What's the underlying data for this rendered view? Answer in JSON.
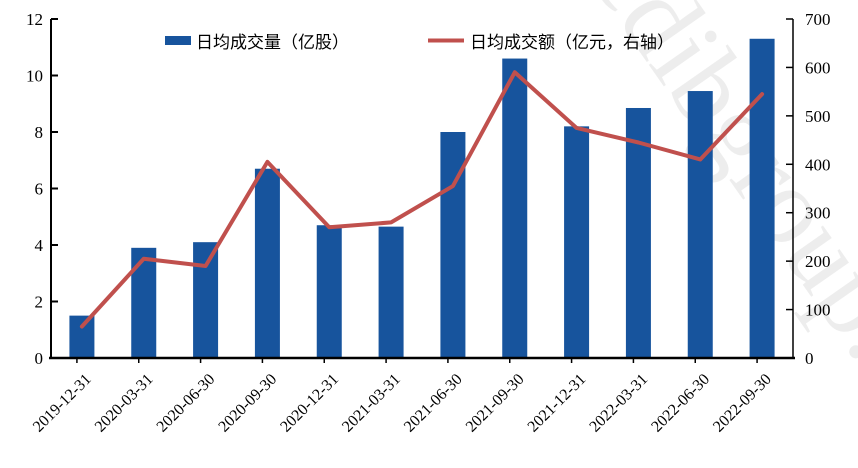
{
  "watermark": "edibgroup.cn",
  "colors": {
    "bar": "#17549d",
    "line": "#c0504d",
    "axis": "#000000",
    "text": "#000000",
    "watermark": "#d9d9d9",
    "background": "#ffffff"
  },
  "chart_data": {
    "type": "bar",
    "subtype": "combo-bar-line-dual-axis",
    "title": "",
    "xlabel": "",
    "ylabel_left": "",
    "ylabel_right": "",
    "grid": false,
    "legend_position": "top",
    "categories": [
      "2019-12-31",
      "2020-03-31",
      "2020-06-30",
      "2020-09-30",
      "2020-12-31",
      "2021-03-31",
      "2021-06-30",
      "2021-09-30",
      "2021-12-31",
      "2022-03-31",
      "2022-06-30",
      "2022-09-30"
    ],
    "series": [
      {
        "name": "日均成交量（亿股）",
        "type": "bar",
        "axis": "left",
        "color": "#17549d",
        "values": [
          1.5,
          3.9,
          4.1,
          6.7,
          4.7,
          4.65,
          8.0,
          10.6,
          8.2,
          8.85,
          9.45,
          11.3
        ]
      },
      {
        "name": "日均成交额（亿元，右轴）",
        "type": "line",
        "axis": "right",
        "color": "#c0504d",
        "values": [
          65,
          205,
          190,
          405,
          270,
          280,
          355,
          590,
          475,
          445,
          410,
          545
        ]
      }
    ],
    "left_axis": {
      "range": [
        0,
        12
      ],
      "ticks": [
        0,
        2,
        4,
        6,
        8,
        10,
        12
      ]
    },
    "right_axis": {
      "range": [
        0,
        700
      ],
      "ticks": [
        0,
        100,
        200,
        300,
        400,
        500,
        600,
        700
      ]
    }
  }
}
